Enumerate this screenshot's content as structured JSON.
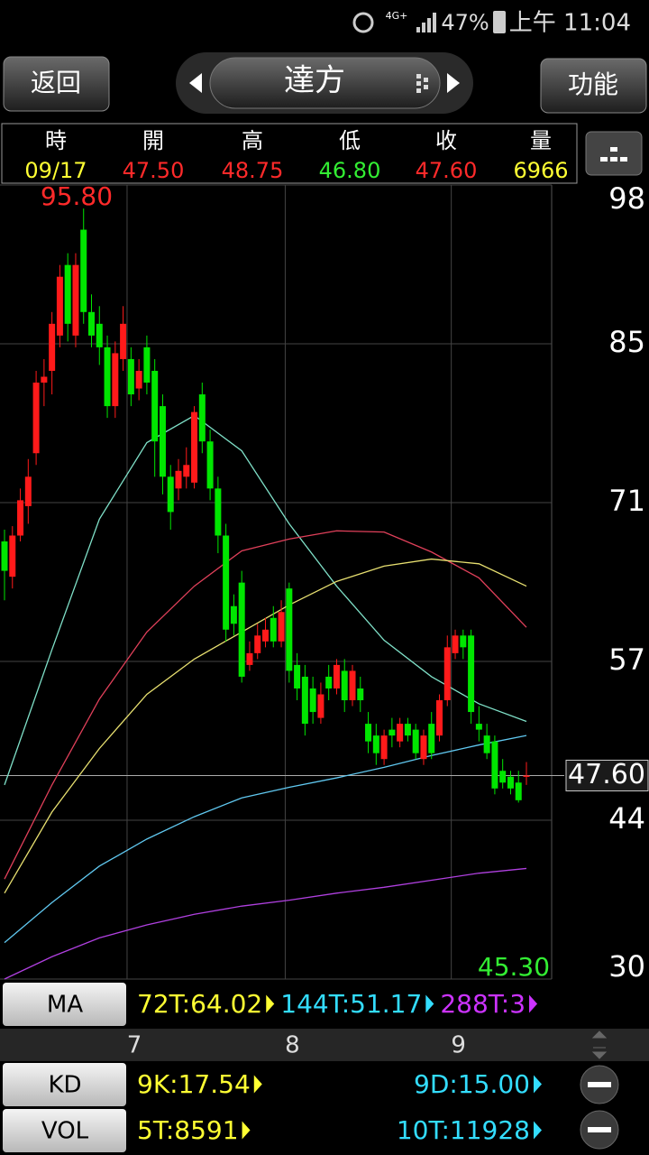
{
  "status_bar": {
    "network": "4G+",
    "battery": "47%",
    "time": "上午 11:04"
  },
  "nav": {
    "back": "返回",
    "title": "達方",
    "menu": "功能"
  },
  "quote": {
    "labels": [
      "時",
      "開",
      "高",
      "低",
      "收",
      "量"
    ],
    "values": [
      "09/17",
      "47.50",
      "48.75",
      "46.80",
      "47.60",
      "6966"
    ]
  },
  "chart_data": {
    "type": "candlestick",
    "open": [
      67.5,
      64.5,
      68,
      70.5,
      75,
      81,
      82,
      85,
      91,
      85,
      94,
      87,
      86,
      84,
      79,
      83,
      83,
      80.5,
      84,
      82,
      79,
      73,
      72,
      73,
      72.5,
      80,
      76,
      72,
      68,
      62,
      64,
      57,
      58,
      59,
      61,
      59,
      63.5,
      57,
      56,
      55,
      52.5,
      56,
      55,
      56.5,
      54,
      55,
      52,
      51,
      49,
      51.5,
      50.5,
      52,
      51.5,
      49,
      52,
      51,
      54,
      58,
      59.5,
      59.5,
      52,
      51,
      50.5,
      48,
      47.5,
      47,
      47.5
    ],
    "high": [
      68.5,
      68.8,
      72,
      74.5,
      82,
      83,
      87,
      91,
      92,
      92,
      95.8,
      88.5,
      87.5,
      85,
      84.5,
      87.5,
      84,
      83,
      85,
      83,
      80,
      74,
      74.5,
      75.5,
      79,
      81,
      77,
      73,
      69,
      63,
      65,
      59,
      60.5,
      61,
      62,
      62.5,
      64,
      58,
      57,
      56,
      55.5,
      57,
      57.5,
      57.5,
      57,
      56,
      53,
      52,
      51.5,
      52.5,
      52.5,
      52.5,
      52,
      51.5,
      53,
      54.5,
      59.5,
      60,
      60,
      60,
      53.5,
      52,
      51,
      49,
      48,
      48,
      48.75
    ],
    "low": [
      62.5,
      63.5,
      67.5,
      69,
      74,
      79,
      80,
      84,
      84.5,
      84,
      86,
      84,
      82.5,
      78,
      78,
      82,
      79,
      79.5,
      80,
      73,
      71.5,
      68.5,
      71,
      72,
      72,
      75,
      71,
      66.5,
      59,
      59.5,
      55.5,
      56.5,
      57.5,
      58.5,
      58.5,
      58.5,
      55.5,
      54,
      51,
      52,
      52,
      54,
      54.5,
      53,
      53.5,
      53,
      49.5,
      48.5,
      48.5,
      50,
      50,
      50.5,
      49,
      48.5,
      49,
      50.5,
      53.5,
      57.5,
      57.5,
      52,
      50.5,
      49,
      46,
      46.5,
      46,
      45.3,
      46.8
    ],
    "close": [
      65,
      68,
      71,
      73,
      81,
      81.5,
      86,
      90,
      86,
      91,
      87,
      85,
      84,
      79,
      83.5,
      86,
      80,
      82,
      81,
      76,
      73,
      70,
      73.5,
      74,
      78.5,
      76,
      72,
      68,
      60,
      60.5,
      56,
      58,
      59.5,
      60,
      59,
      61.5,
      56.5,
      55,
      52,
      53,
      54.5,
      55,
      57,
      54,
      56.5,
      54,
      50.5,
      49.5,
      51,
      51,
      52,
      51,
      49.5,
      51,
      49.5,
      54,
      58.5,
      59.5,
      58.5,
      53,
      51.5,
      49.5,
      46.5,
      47,
      46.5,
      45.5,
      47.6
    ],
    "up_color": "#ff1a1a",
    "down_color": "#00e600",
    "xlim": [
      0,
      66
    ],
    "xticks": [
      {
        "value": 16,
        "label": "7"
      },
      {
        "value": 36,
        "label": "8"
      },
      {
        "value": 57,
        "label": "9"
      }
    ],
    "ylim": [
      30.3,
      97.8
    ],
    "yticks": [
      {
        "value": 97.8,
        "label": "98"
      },
      {
        "value": 84.3,
        "label": "85"
      },
      {
        "value": 70.8,
        "label": "71"
      },
      {
        "value": 57.3,
        "label": "57"
      },
      {
        "value": 43.8,
        "label": "44"
      },
      {
        "value": 30.3,
        "label": "30"
      }
    ],
    "grid": true,
    "high_label": "95.80",
    "low_label": "45.30",
    "last_price": {
      "value": 47.6,
      "label": "47.60"
    },
    "ma_x": [
      0,
      6,
      12,
      18,
      24,
      30,
      36,
      42,
      48,
      54,
      60,
      66
    ],
    "ma": [
      {
        "color": "#7fe0c8",
        "values": [
          46.8,
          58.3,
          69.4,
          75.9,
          78.2,
          75.2,
          69.0,
          63.7,
          59.1,
          56.0,
          53.7,
          52.2
        ]
      },
      {
        "color": "#e0405a",
        "values": [
          38.8,
          46.8,
          54.1,
          59.8,
          63.7,
          66.7,
          67.7,
          68.4,
          68.3,
          66.6,
          64.4,
          60.2
        ]
      },
      {
        "color": "#e8e070",
        "values": [
          37.6,
          44.5,
          49.9,
          54.5,
          57.5,
          59.8,
          62.1,
          64.1,
          65.4,
          66.0,
          65.6,
          63.7
        ]
      },
      {
        "color": "#60c8f0",
        "values": [
          33.4,
          36.8,
          39.9,
          42.2,
          44.1,
          45.7,
          46.6,
          47.4,
          48.3,
          49.3,
          50.2,
          51.0
        ]
      },
      {
        "color": "#b040e0",
        "values": [
          30.3,
          32.2,
          33.8,
          34.9,
          35.8,
          36.5,
          37.0,
          37.6,
          38.1,
          38.7,
          39.3,
          39.7
        ]
      }
    ]
  },
  "indicators": {
    "ma": {
      "button": "MA",
      "items": [
        "72T:64.02",
        "144T:51.17",
        "288T:3"
      ]
    },
    "kd": {
      "button": "KD",
      "items": [
        "9K:17.54",
        "9D:15.00"
      ]
    },
    "vol": {
      "button": "VOL",
      "items": [
        "5T:8591",
        "10T:11928"
      ]
    }
  }
}
